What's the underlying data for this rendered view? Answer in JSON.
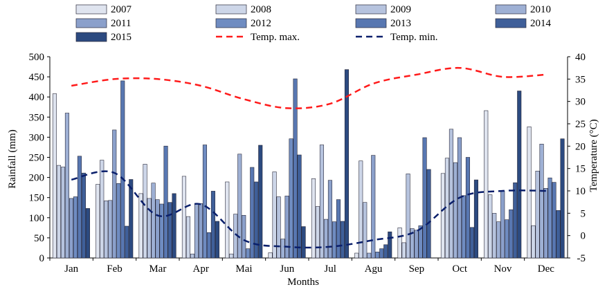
{
  "chart_data": {
    "type": "bar",
    "categories": [
      "Jan",
      "Feb",
      "Mar",
      "Apr",
      "Mai",
      "Jun",
      "Jul",
      "Agu",
      "Sep",
      "Oct",
      "Nov",
      "Dec"
    ],
    "xlabel": "Months",
    "ylabel": "Rainfall (mm)",
    "y2label": "Temperature (°C)",
    "ylim": [
      0,
      500
    ],
    "y2lim": [
      -5,
      40
    ],
    "yticks": [
      "0",
      "50",
      "100",
      "150",
      "200",
      "250",
      "300",
      "350",
      "400",
      "450",
      "500"
    ],
    "y2ticks": [
      "-5",
      "0",
      "5",
      "10",
      "15",
      "20",
      "25",
      "30",
      "35",
      "40"
    ],
    "legend_position": "top",
    "series": [
      {
        "name": "2007",
        "color": "#dfe4ef",
        "values": [
          408,
          183,
          160,
          203,
          189,
          13,
          197,
          12,
          75,
          210,
          366,
          326
        ]
      },
      {
        "name": "2008",
        "color": "#cdd6e8",
        "values": [
          230,
          243,
          233,
          103,
          10,
          214,
          128,
          241,
          38,
          248,
          157,
          80
        ]
      },
      {
        "name": "2009",
        "color": "#b6c3de",
        "values": [
          226,
          142,
          148,
          10,
          109,
          152,
          281,
          138,
          209,
          320,
          111,
          216
        ]
      },
      {
        "name": "2010",
        "color": "#9eb0d4",
        "values": [
          360,
          143,
          186,
          135,
          258,
          47,
          96,
          12,
          73,
          237,
          90,
          283
        ]
      },
      {
        "name": "2011",
        "color": "#8ba0cb",
        "values": [
          148,
          318,
          145,
          135,
          106,
          154,
          193,
          255,
          69,
          299,
          166,
          173
        ]
      },
      {
        "name": "2012",
        "color": "#6f8cc1",
        "values": [
          152,
          185,
          134,
          281,
          23,
          296,
          90,
          15,
          80,
          155,
          95,
          199
        ]
      },
      {
        "name": "2013",
        "color": "#5877b1",
        "values": [
          253,
          440,
          278,
          63,
          225,
          445,
          145,
          23,
          299,
          250,
          120,
          188
        ]
      },
      {
        "name": "2014",
        "color": "#3f5f99",
        "values": [
          211,
          79,
          138,
          166,
          189,
          256,
          91,
          33,
          220,
          76,
          187,
          118
        ]
      },
      {
        "name": "2015",
        "color": "#2c4a80",
        "values": [
          123,
          195,
          160,
          91,
          280,
          78,
          468,
          65,
          0,
          194,
          415,
          296
        ]
      }
    ],
    "lines": [
      {
        "name": "Temp. max.",
        "color": "#ff1a1a",
        "dash": "dashed",
        "values": [
          33.5,
          35,
          35,
          33.5,
          30.5,
          28.5,
          29.5,
          34,
          36,
          37.5,
          35.5,
          36
        ]
      },
      {
        "name": "Temp. min.",
        "color": "#0a1f6b",
        "dash": "dashed",
        "values": [
          12.5,
          14,
          4.5,
          7,
          -1,
          -2.5,
          -2.5,
          -1,
          1,
          8.5,
          10,
          10
        ]
      }
    ]
  }
}
